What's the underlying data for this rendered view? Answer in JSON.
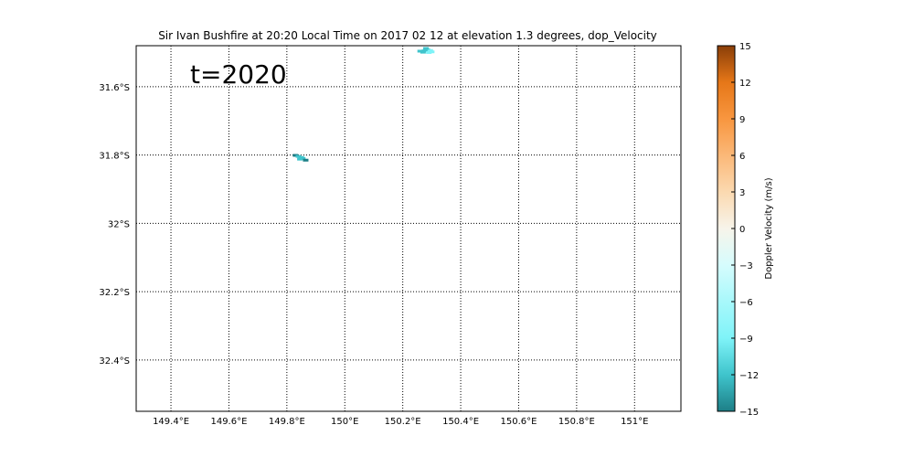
{
  "chart_data": {
    "type": "scatter",
    "title": "Sir Ivan Bushfire at 20:20 Local Time on 2017 02 12 at elevation 1.3 degrees, dop_Velocity",
    "annotation": "t=2020",
    "xlabel": "",
    "ylabel": "",
    "x_ticks": [
      {
        "value": 149.4,
        "label": "149.4°E"
      },
      {
        "value": 149.6,
        "label": "149.6°E"
      },
      {
        "value": 149.8,
        "label": "149.8°E"
      },
      {
        "value": 150.0,
        "label": "150°E"
      },
      {
        "value": 150.2,
        "label": "150.2°E"
      },
      {
        "value": 150.4,
        "label": "150.4°E"
      },
      {
        "value": 150.6,
        "label": "150.6°E"
      },
      {
        "value": 150.8,
        "label": "150.8°E"
      },
      {
        "value": 151.0,
        "label": "151°E"
      }
    ],
    "y_ticks": [
      {
        "value": -31.6,
        "label": "31.6°S"
      },
      {
        "value": -31.8,
        "label": "31.8°S"
      },
      {
        "value": -32.0,
        "label": "32°S"
      },
      {
        "value": -32.2,
        "label": "32.2°S"
      },
      {
        "value": -32.4,
        "label": "32.4°S"
      }
    ],
    "xlim": [
      149.28,
      151.16
    ],
    "ylim": [
      -32.55,
      -31.48
    ],
    "grid": true,
    "points": [
      {
        "lon": 150.26,
        "lat": -31.496,
        "v": -13
      },
      {
        "lon": 150.275,
        "lat": -31.495,
        "v": -12
      },
      {
        "lon": 150.285,
        "lat": -31.492,
        "v": -11
      },
      {
        "lon": 150.295,
        "lat": -31.494,
        "v": -10
      },
      {
        "lon": 150.29,
        "lat": -31.5,
        "v": -10
      },
      {
        "lon": 150.28,
        "lat": -31.488,
        "v": -11
      },
      {
        "lon": 150.3,
        "lat": -31.498,
        "v": -9
      },
      {
        "lon": 150.27,
        "lat": -31.499,
        "v": -12
      },
      {
        "lon": 149.83,
        "lat": -31.801,
        "v": -14
      },
      {
        "lon": 149.84,
        "lat": -31.804,
        "v": -13
      },
      {
        "lon": 149.85,
        "lat": -31.807,
        "v": -12
      },
      {
        "lon": 149.855,
        "lat": -31.81,
        "v": -13
      },
      {
        "lon": 149.865,
        "lat": -31.815,
        "v": -14
      },
      {
        "lon": 149.845,
        "lat": -31.812,
        "v": -11
      }
    ],
    "colorbar": {
      "label": "Doppler Velocity (m/s)",
      "range": [
        -15,
        15
      ],
      "ticks": [
        {
          "value": 15,
          "label": "15"
        },
        {
          "value": 12,
          "label": "12"
        },
        {
          "value": 9,
          "label": "9"
        },
        {
          "value": 6,
          "label": "6"
        },
        {
          "value": 3,
          "label": "3"
        },
        {
          "value": 0,
          "label": "0"
        },
        {
          "value": -3,
          "label": "−3"
        },
        {
          "value": -6,
          "label": "−6"
        },
        {
          "value": -9,
          "label": "−9"
        },
        {
          "value": -12,
          "label": "−12"
        },
        {
          "value": -15,
          "label": "−15"
        }
      ],
      "colors": [
        {
          "value": -15,
          "color": "#1d7f87"
        },
        {
          "value": -12,
          "color": "#3fc4cc"
        },
        {
          "value": -9,
          "color": "#7ff3f8"
        },
        {
          "value": -6,
          "color": "#a8f8fb"
        },
        {
          "value": -3,
          "color": "#d6fcfd"
        },
        {
          "value": 0,
          "color": "#f7f4ea"
        },
        {
          "value": 3,
          "color": "#fbd9b0"
        },
        {
          "value": 6,
          "color": "#fbb878"
        },
        {
          "value": 9,
          "color": "#f8963f"
        },
        {
          "value": 12,
          "color": "#e67718"
        },
        {
          "value": 15,
          "color": "#8a3e08"
        }
      ]
    }
  }
}
